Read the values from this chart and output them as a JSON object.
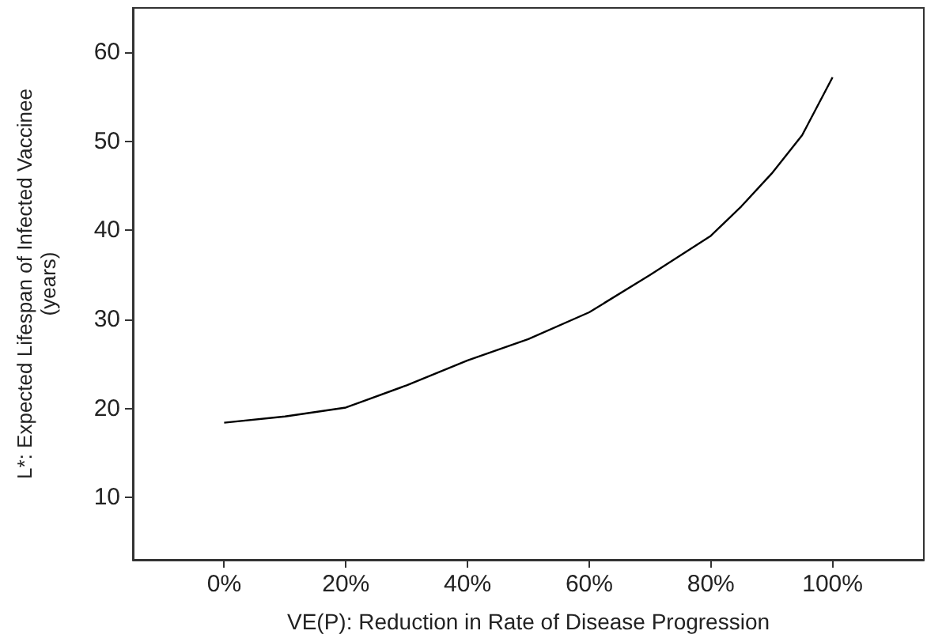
{
  "chart_data": {
    "type": "line",
    "xlabel": "VE(P): Reduction in Rate of Disease Progression",
    "ylabel": "L*: Expected Lifespan of Infected Vaccinee\n(years)",
    "x": [
      0,
      0.1,
      0.2,
      0.3,
      0.4,
      0.5,
      0.6,
      0.7,
      0.8,
      0.85,
      0.9,
      0.95,
      1.0
    ],
    "series": [
      {
        "color": "#000000",
        "values": [
          18.4,
          19.1,
          20.1,
          22.6,
          25.4,
          27.8,
          30.8,
          35.0,
          39.4,
          42.7,
          46.4,
          50.7,
          57.2
        ]
      }
    ],
    "xlim": [
      -0.15,
      1.15
    ],
    "xticks": [
      {
        "value": 0,
        "label": "0%"
      },
      {
        "value": 0.2,
        "label": "20%"
      },
      {
        "value": 0.4,
        "label": "40%"
      },
      {
        "value": 0.6,
        "label": "60%"
      },
      {
        "value": 0.8,
        "label": "80%"
      },
      {
        "value": 1,
        "label": "100%"
      }
    ],
    "ylim": [
      3,
      65
    ],
    "yticks": [
      10,
      20,
      30,
      40,
      50,
      60
    ],
    "grid": false,
    "marker": "none",
    "line_style": "solid"
  }
}
